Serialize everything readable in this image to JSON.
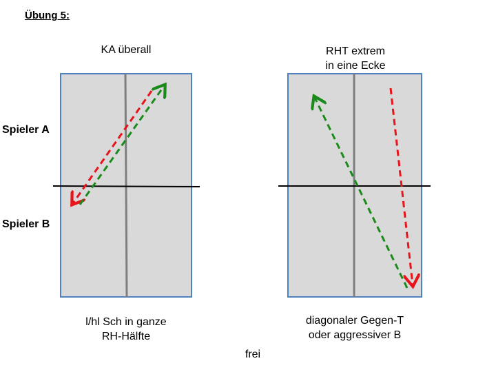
{
  "title": "Übung 5:",
  "players": {
    "a": "Spieler A",
    "b": "Spieler B"
  },
  "left_court": {
    "top_label": "KA überall",
    "bottom_label_line1": "l/hl Sch in ganze",
    "bottom_label_line2": "RH-Hälfte"
  },
  "right_court": {
    "top_label_line1": "RHT extrem",
    "top_label_line2": "in eine Ecke",
    "bottom_label_line1": "diagonaler Gegen-T",
    "bottom_label_line2": "oder aggressiver B"
  },
  "footer": "frei",
  "colors": {
    "court_fill": "#d9d9d9",
    "court_border": "#4f81bd",
    "center_line": "#7f7f7f",
    "net": "#000000",
    "arrow_red": "#e8141b",
    "arrow_green": "#1a8a1a"
  }
}
